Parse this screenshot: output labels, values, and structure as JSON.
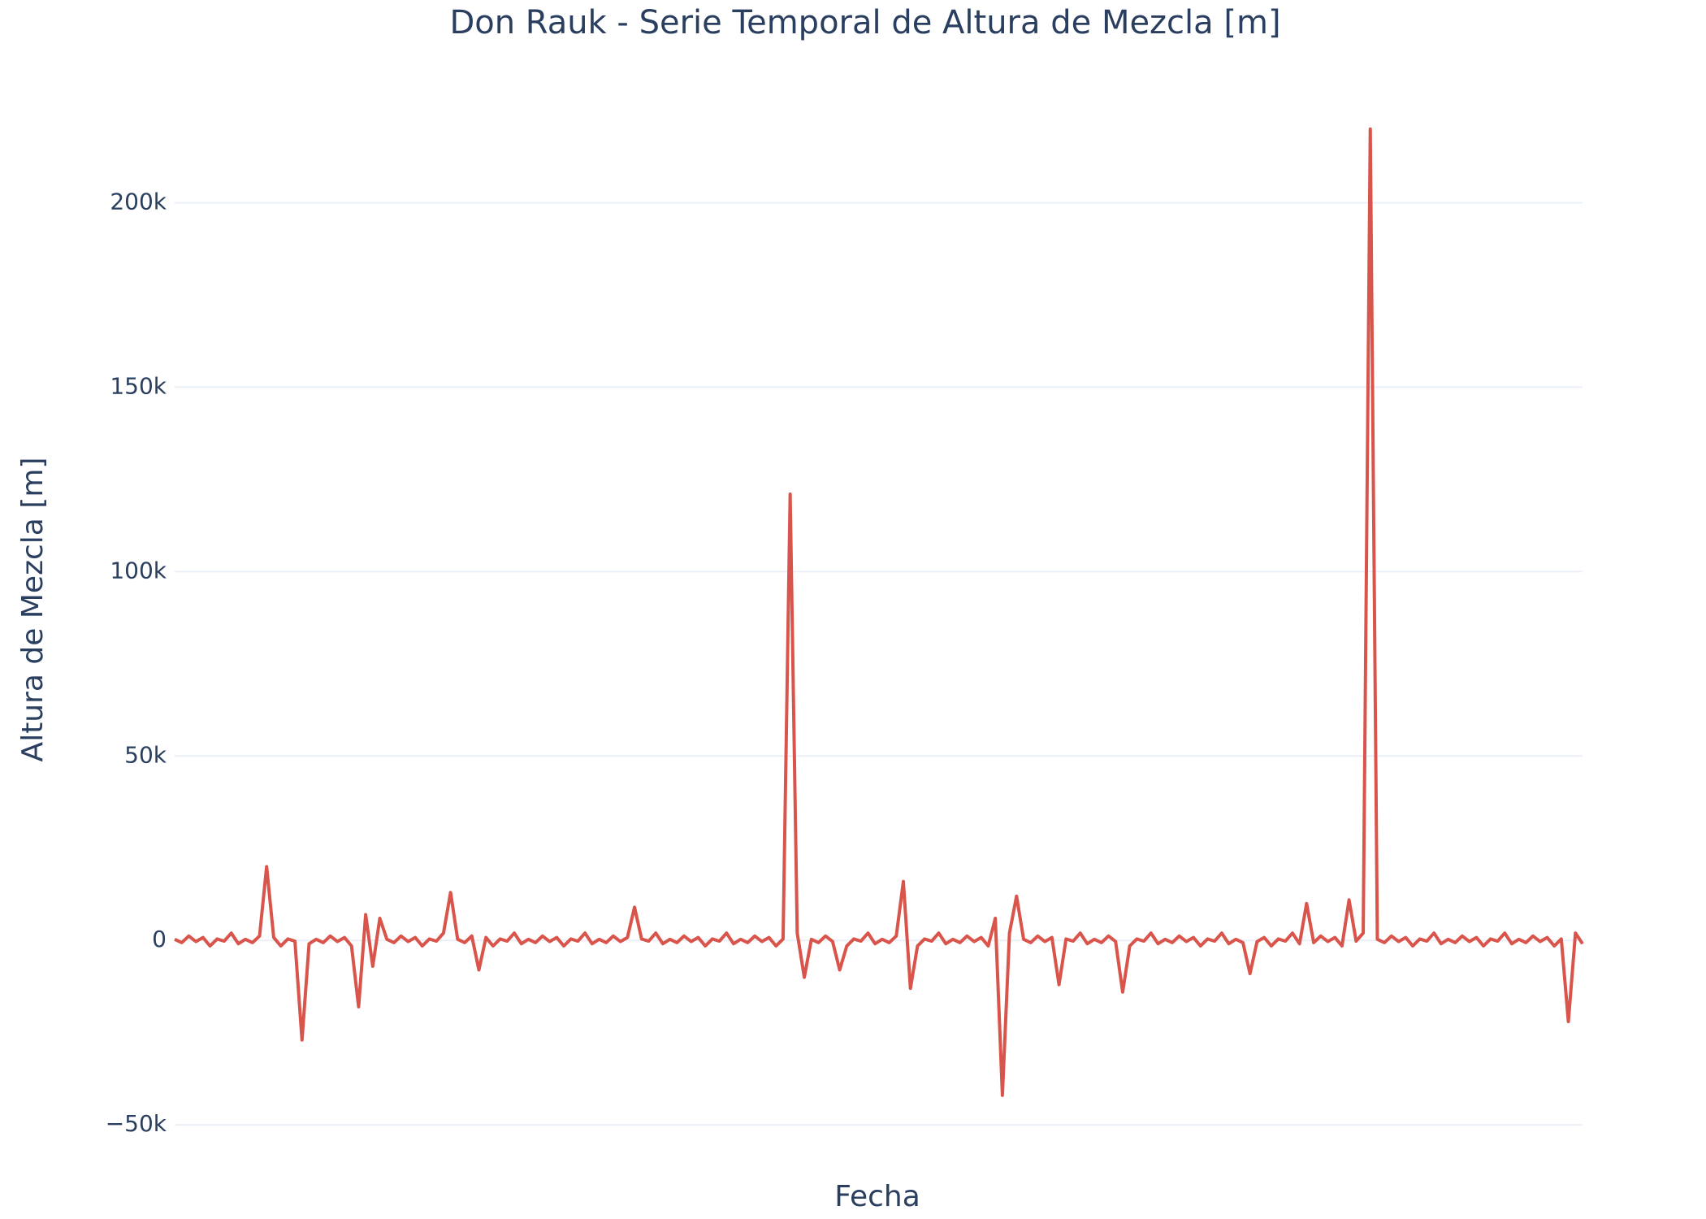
{
  "chart_data": {
    "type": "line",
    "title": "Don Rauk - Serie Temporal de Altura de Mezcla [m]",
    "x_label": "Fecha",
    "y_label": "Altura de Mezcla [m]",
    "color": "#d9544a",
    "grid": true,
    "ylim": [
      -59000,
      225000
    ],
    "yticks": [
      {
        "value": -50000,
        "label": "−50k"
      },
      0,
      {
        "value": 50000,
        "label": "50k"
      },
      {
        "value": 100000,
        "label": "100k"
      },
      {
        "value": 150000,
        "label": "150k"
      },
      {
        "value": 200000,
        "label": "200k"
      }
    ],
    "values": [
      300,
      -600,
      1200,
      -300,
      800,
      -1500,
      400,
      -200,
      2000,
      -900,
      300,
      -600,
      1200,
      20000,
      800,
      -1500,
      400,
      -200,
      -27000,
      -900,
      300,
      -600,
      1200,
      -300,
      800,
      -1500,
      -18000,
      7000,
      -7000,
      6000,
      300,
      -600,
      1200,
      -300,
      800,
      -1500,
      400,
      -200,
      2000,
      13000,
      300,
      -600,
      1200,
      -8000,
      800,
      -1500,
      400,
      -200,
      2000,
      -900,
      300,
      -600,
      1200,
      -300,
      800,
      -1500,
      400,
      -200,
      2000,
      -900,
      300,
      -600,
      1200,
      -300,
      800,
      9000,
      400,
      -200,
      2000,
      -900,
      300,
      -600,
      1200,
      -300,
      800,
      -1500,
      400,
      -200,
      2000,
      -900,
      300,
      -600,
      1200,
      -300,
      800,
      -1500,
      400,
      121000,
      2000,
      -10000,
      300,
      -600,
      1200,
      -300,
      -8000,
      -1500,
      400,
      -200,
      2000,
      -900,
      300,
      -600,
      1200,
      16000,
      -13000,
      -1500,
      400,
      -200,
      2000,
      -900,
      300,
      -600,
      1200,
      -300,
      800,
      -1500,
      6000,
      -42000,
      2000,
      12000,
      300,
      -600,
      1200,
      -300,
      800,
      -12000,
      400,
      -200,
      2000,
      -900,
      300,
      -600,
      1200,
      -300,
      -14000,
      -1500,
      400,
      -200,
      2000,
      -900,
      300,
      -600,
      1200,
      -300,
      800,
      -1500,
      400,
      -200,
      2000,
      -900,
      300,
      -600,
      -9000,
      -300,
      800,
      -1500,
      400,
      -200,
      2000,
      -900,
      10000,
      -600,
      1200,
      -300,
      800,
      -1500,
      11000,
      -200,
      2000,
      220000,
      300,
      -600,
      1200,
      -300,
      800,
      -1500,
      400,
      -200,
      2000,
      -900,
      300,
      -600,
      1200,
      -300,
      800,
      -1500,
      400,
      -200,
      2000,
      -900,
      300,
      -600,
      1200,
      -300,
      800,
      -1500,
      400,
      -22000,
      2000,
      -900
    ]
  }
}
